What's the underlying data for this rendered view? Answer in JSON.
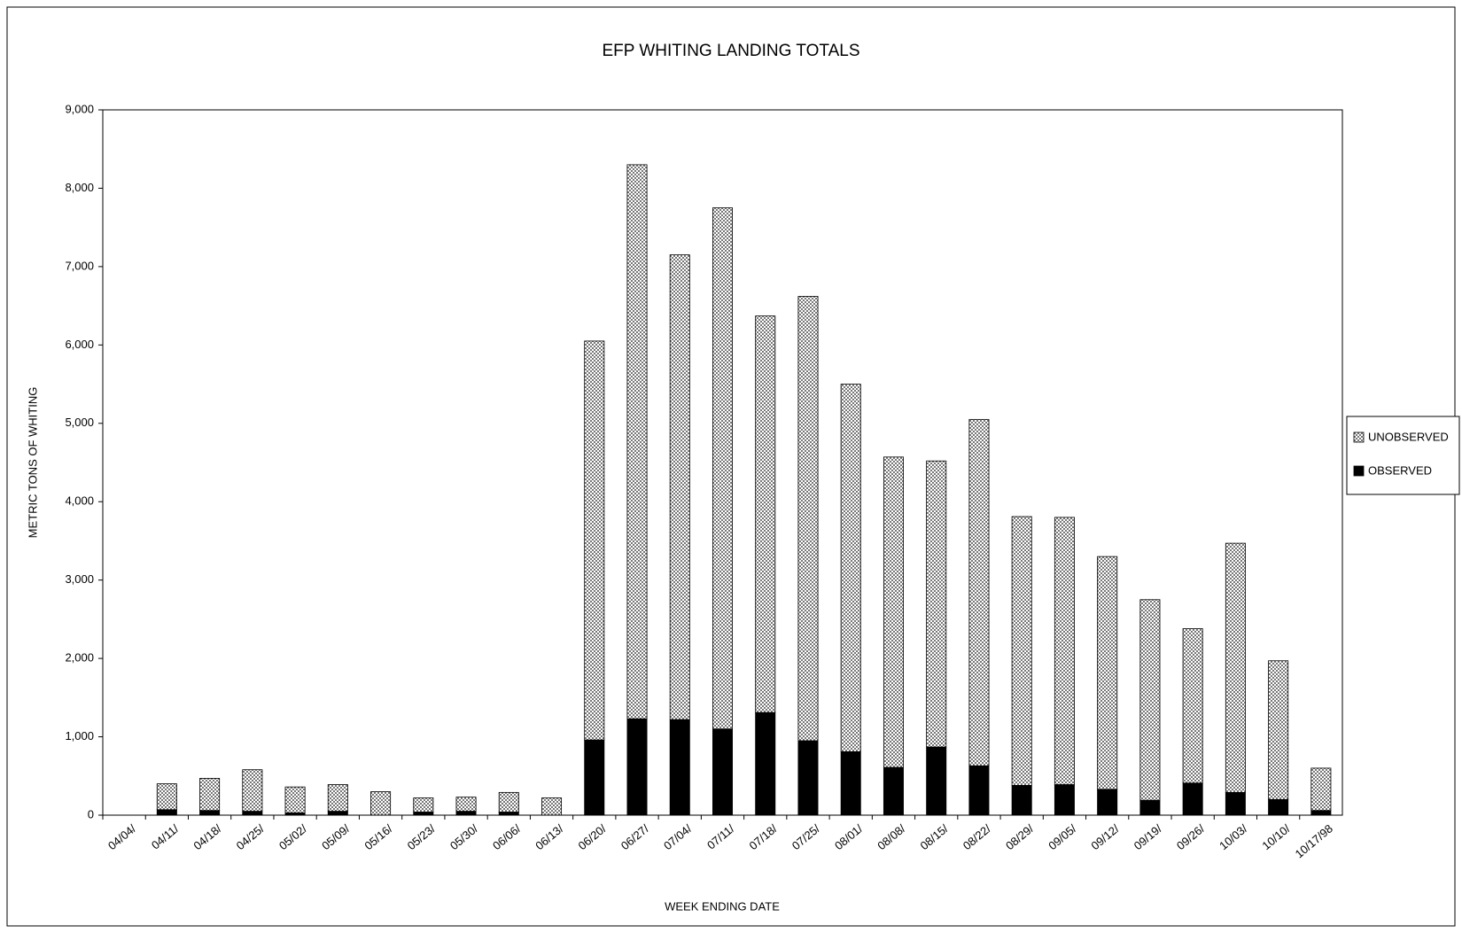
{
  "chart_data": {
    "type": "stacked-bar",
    "title": "EFP WHITING LANDING TOTALS",
    "x_label": "WEEK ENDING DATE",
    "y_label": "METRIC TONS OF WHITING",
    "categories": [
      "04/04/",
      "04/11/",
      "04/18/",
      "04/25/",
      "05/02/",
      "05/09/",
      "05/16/",
      "05/23/",
      "05/30/",
      "06/06/",
      "06/13/",
      "06/20/",
      "06/27/",
      "07/04/",
      "07/11/",
      "07/18/",
      "07/25/",
      "08/01/",
      "08/08/",
      "08/15/",
      "08/22/",
      "08/29/",
      "09/05/",
      "09/12/",
      "09/19/",
      "09/26/",
      "10/03/",
      "10/10/",
      "10/17/98"
    ],
    "series": [
      {
        "name": "OBSERVED",
        "color": "#000000",
        "pattern": "solid",
        "values": [
          null,
          70,
          60,
          50,
          30,
          50,
          0,
          40,
          50,
          40,
          0,
          960,
          1230,
          1220,
          1100,
          1310,
          950,
          810,
          610,
          870,
          630,
          380,
          390,
          330,
          190,
          410,
          290,
          200,
          60
        ]
      },
      {
        "name": "UNOBSERVED",
        "color": "#777777",
        "pattern": "checker",
        "values": [
          null,
          330,
          410,
          530,
          330,
          340,
          300,
          180,
          180,
          250,
          220,
          5090,
          7070,
          5930,
          6650,
          5060,
          5670,
          4690,
          3960,
          3650,
          4420,
          3430,
          3410,
          2970,
          2560,
          1970,
          3180,
          1770,
          540
        ]
      }
    ],
    "ylim": [
      0,
      9000
    ],
    "yticks": [
      0,
      {
        "value": 1000,
        "label": "1,000"
      },
      {
        "value": 2000,
        "label": "2,000"
      },
      {
        "value": 3000,
        "label": "3,000"
      },
      {
        "value": 4000,
        "label": "4,000"
      },
      {
        "value": 5000,
        "label": "5,000"
      },
      {
        "value": 6000,
        "label": "6,000"
      },
      {
        "value": 7000,
        "label": "7,000"
      },
      {
        "value": 8000,
        "label": "8,000"
      },
      {
        "value": 9000,
        "label": "9,000"
      }
    ],
    "grid": false,
    "legend": "right"
  }
}
